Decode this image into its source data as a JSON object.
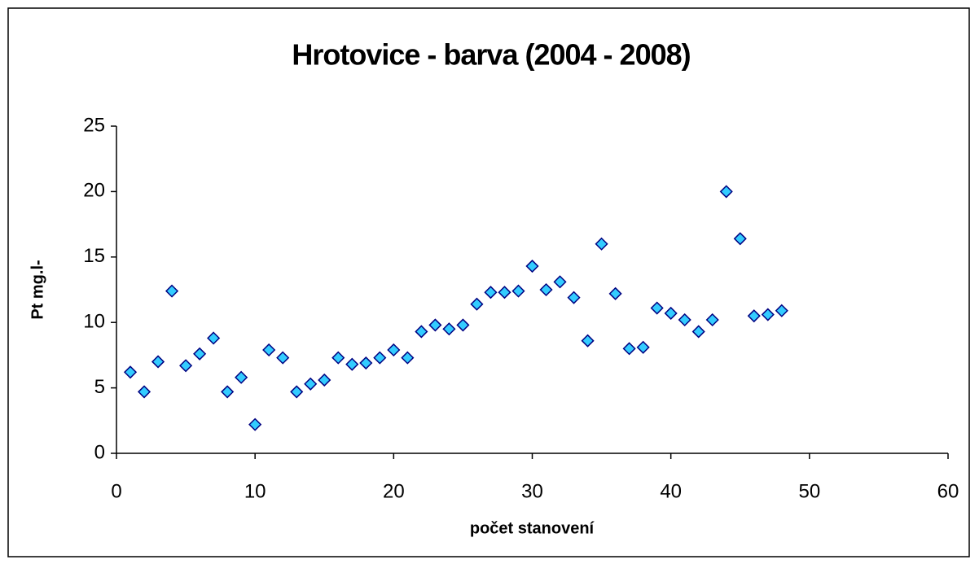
{
  "chart_data": {
    "type": "scatter",
    "title": "Hrotovice - barva (2004 - 2008)",
    "x_label": "počet stanovení",
    "y_label": "Pt mg.l-",
    "x": [
      1,
      2,
      3,
      4,
      5,
      6,
      7,
      8,
      9,
      10,
      11,
      12,
      13,
      14,
      15,
      16,
      17,
      18,
      19,
      20,
      21,
      22,
      23,
      24,
      25,
      26,
      27,
      28,
      29,
      30,
      31,
      32,
      33,
      34,
      35,
      36,
      37,
      38,
      39,
      40,
      41,
      42,
      43,
      44,
      45,
      46,
      47,
      48
    ],
    "values": [
      6.2,
      4.7,
      7.0,
      12.4,
      6.7,
      7.6,
      8.8,
      4.7,
      5.8,
      2.2,
      7.9,
      7.3,
      4.7,
      5.3,
      5.6,
      7.3,
      6.8,
      6.9,
      7.3,
      7.9,
      7.3,
      9.3,
      9.8,
      9.5,
      9.8,
      11.4,
      12.3,
      12.3,
      12.4,
      14.3,
      12.5,
      13.1,
      11.9,
      8.6,
      16.0,
      12.2,
      8.0,
      8.1,
      11.1,
      10.7,
      10.2,
      9.3,
      10.2,
      20.0,
      16.4,
      10.5,
      10.6,
      10.9
    ],
    "color": "#33ccff",
    "edge_color": "#000080",
    "xlim": [
      0,
      60
    ],
    "xticks": [
      0,
      10,
      20,
      30,
      40,
      50,
      60
    ],
    "ylim": [
      0,
      25
    ],
    "yticks": [
      0,
      5,
      10,
      15,
      20,
      25
    ],
    "grid": false
  }
}
